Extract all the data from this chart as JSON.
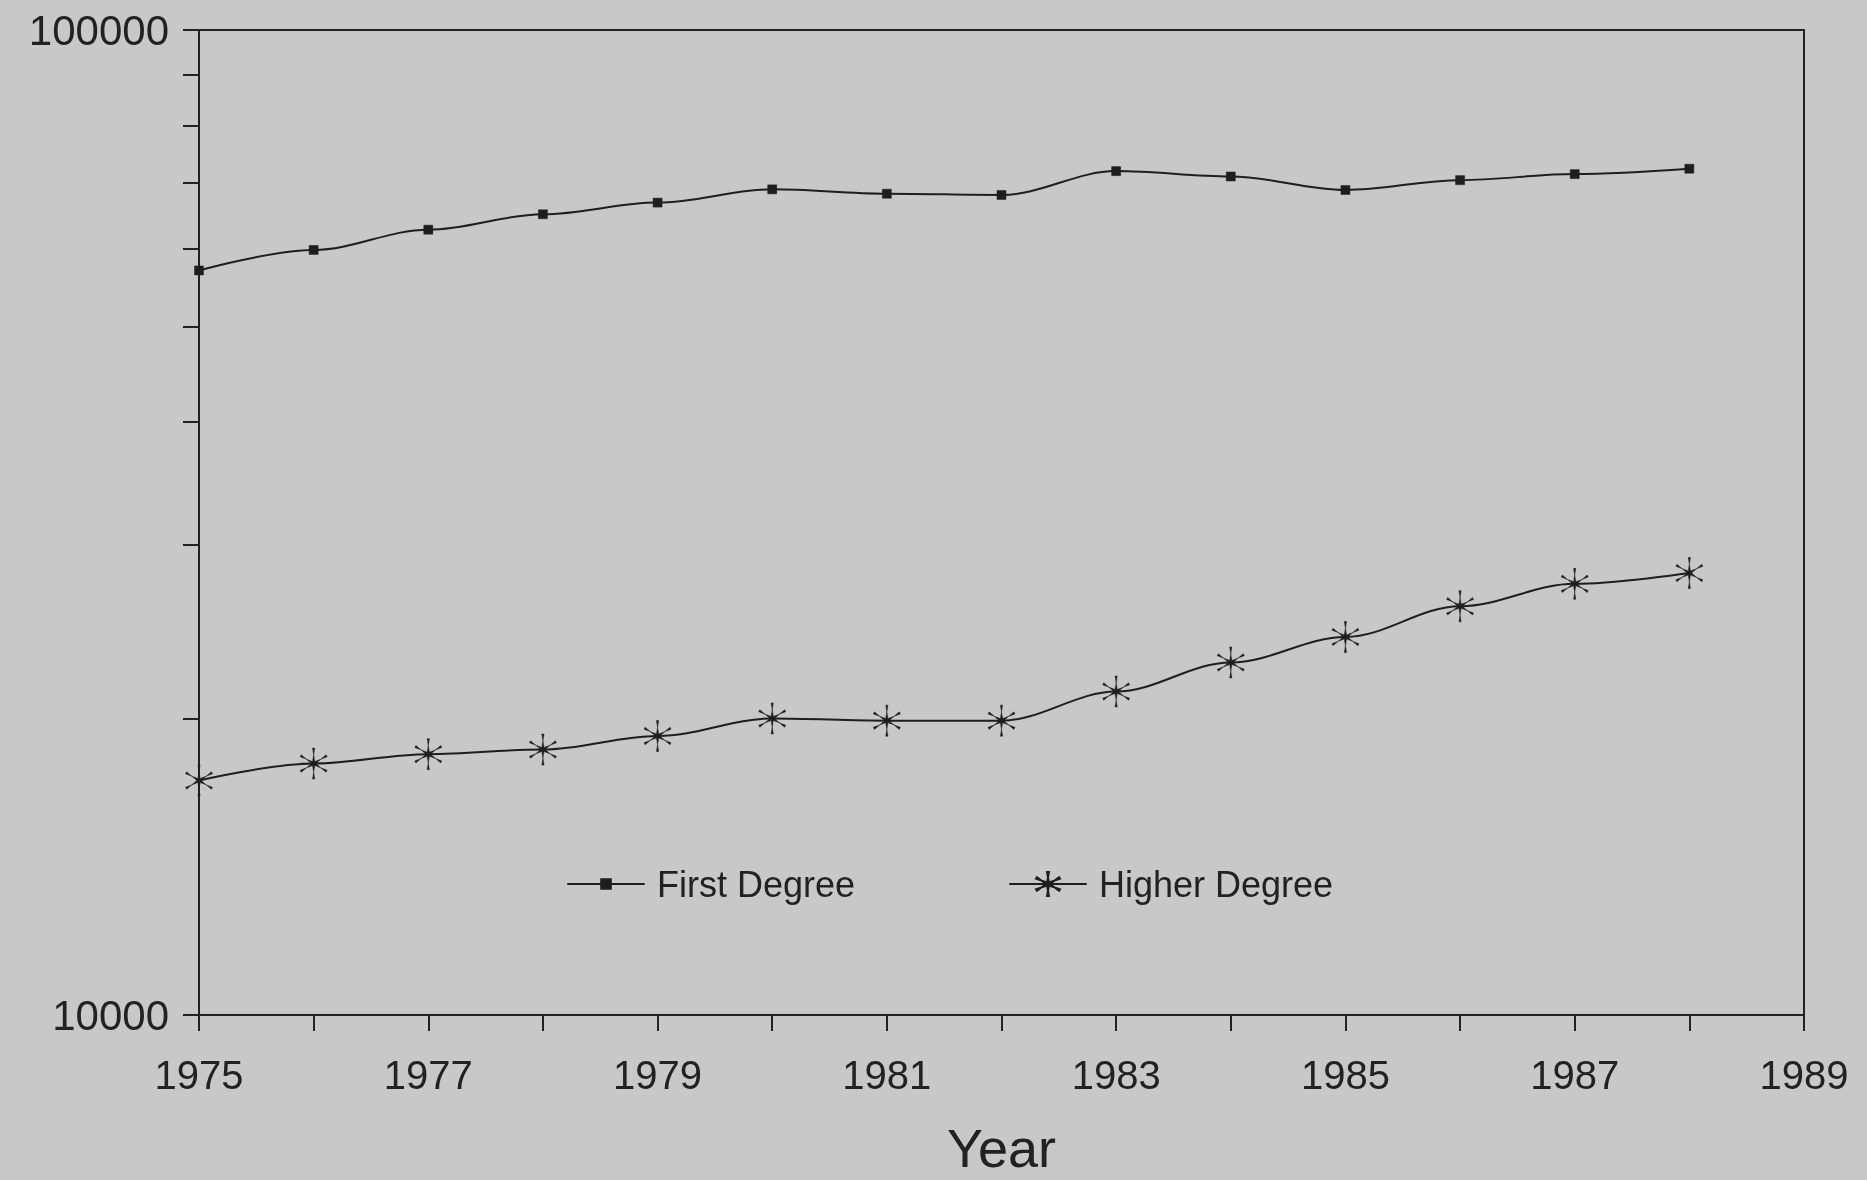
{
  "chart_data": {
    "type": "line",
    "xlabel": "Year",
    "x": [
      1975,
      1976,
      1977,
      1978,
      1979,
      1980,
      1981,
      1982,
      1983,
      1984,
      1985,
      1986,
      1987,
      1988
    ],
    "series": [
      {
        "name": "First Degree",
        "color": "#1e1e1e",
        "marker": "square",
        "values": [
          57000,
          59800,
          62700,
          65000,
          66800,
          68900,
          68200,
          68000,
          71900,
          71000,
          68800,
          70400,
          71400,
          72300
        ]
      },
      {
        "name": "Higher Degree",
        "color": "#1e1e1e",
        "marker": "star",
        "values": [
          17300,
          18000,
          18400,
          18600,
          19200,
          20000,
          19900,
          19900,
          21300,
          22800,
          24200,
          26000,
          27400,
          28100
        ]
      }
    ],
    "xlim": [
      1975,
      1989
    ],
    "xticks": [
      1975,
      {
        "value": 1976,
        "label": null
      },
      1977,
      {
        "value": 1978,
        "label": null
      },
      1979,
      {
        "value": 1980,
        "label": null
      },
      1981,
      {
        "value": 1982,
        "label": null
      },
      1983,
      {
        "value": 1984,
        "label": null
      },
      1985,
      {
        "value": 1986,
        "label": null
      },
      1987,
      {
        "value": 1988,
        "label": null
      },
      1989
    ],
    "ylim": [
      10000,
      100000
    ],
    "yticks": [
      10000,
      {
        "value": 20000,
        "label": null
      },
      {
        "value": 30000,
        "label": null
      },
      {
        "value": 40000,
        "label": null
      },
      {
        "value": 50000,
        "label": null
      },
      {
        "value": 60000,
        "label": null
      },
      {
        "value": 70000,
        "label": null
      },
      {
        "value": 80000,
        "label": null
      },
      {
        "value": 90000,
        "label": null
      },
      100000
    ],
    "log": true,
    "legend": "bottom"
  }
}
